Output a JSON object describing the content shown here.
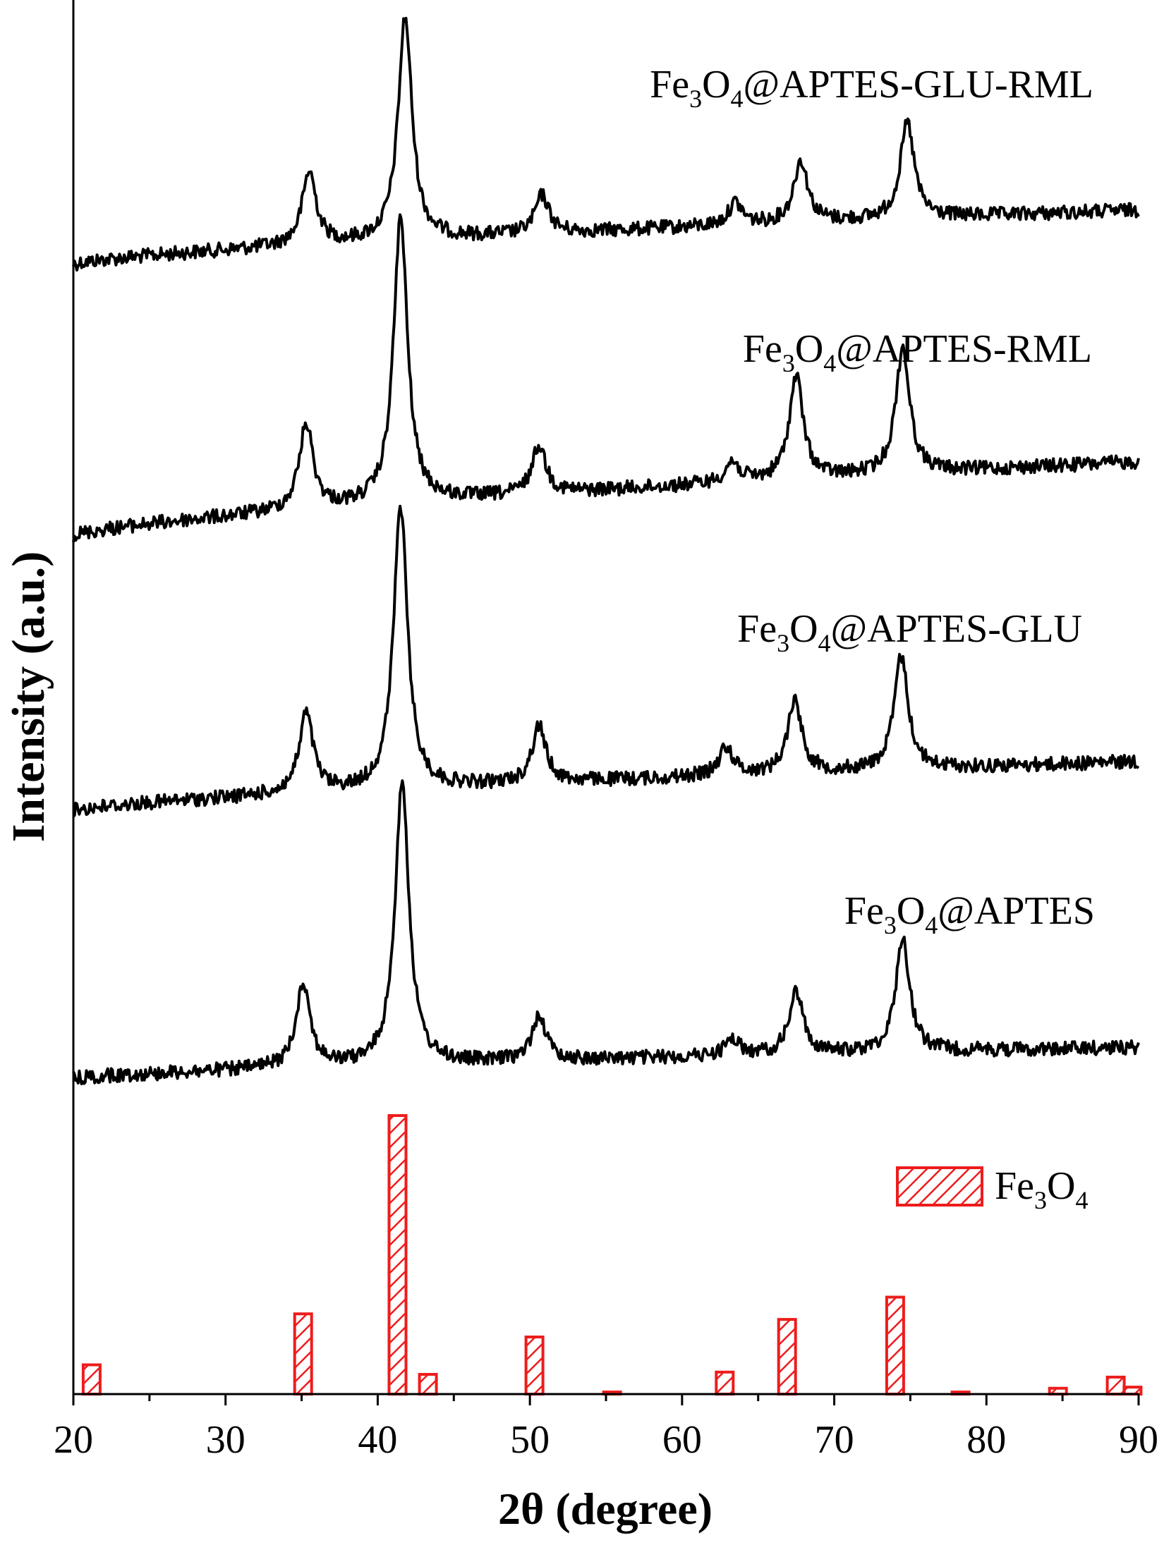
{
  "chart_data": {
    "type": "line",
    "xlabel": "2θ (degree)",
    "ylabel": "Intensity (a.u.)",
    "xlim": [
      20,
      90
    ],
    "x_ticks": [
      "20",
      "30",
      "40",
      "50",
      "60",
      "70",
      "80",
      "90"
    ],
    "series": [
      {
        "name": "Fe3O4@APTES-GLU-RML",
        "label_main": "Fe",
        "label_sub1": "3",
        "label_mid": "O",
        "label_sub2": "4",
        "label_rest": "@APTES-GLU-RML",
        "peaks": [
          {
            "x": 35.5,
            "h": 0.33
          },
          {
            "x": 41.8,
            "h": 1.0
          },
          {
            "x": 50.8,
            "h": 0.17
          },
          {
            "x": 63.5,
            "h": 0.1
          },
          {
            "x": 67.8,
            "h": 0.28
          },
          {
            "x": 74.8,
            "h": 0.43
          }
        ]
      },
      {
        "name": "Fe3O4@APTES-RML",
        "label_main": "Fe",
        "label_sub1": "3",
        "label_mid": "O",
        "label_sub2": "4",
        "label_rest": "@APTES-RML",
        "peaks": [
          {
            "x": 35.3,
            "h": 0.3
          },
          {
            "x": 41.5,
            "h": 1.0
          },
          {
            "x": 50.6,
            "h": 0.17
          },
          {
            "x": 63.3,
            "h": 0.07
          },
          {
            "x": 67.5,
            "h": 0.36
          },
          {
            "x": 74.5,
            "h": 0.44
          }
        ]
      },
      {
        "name": "Fe3O4@APTES-GLU",
        "label_main": "Fe",
        "label_sub1": "3",
        "label_mid": "O",
        "label_sub2": "4",
        "label_rest": "@APTES-GLU",
        "peaks": [
          {
            "x": 35.3,
            "h": 0.28
          },
          {
            "x": 41.5,
            "h": 1.0
          },
          {
            "x": 50.6,
            "h": 0.2
          },
          {
            "x": 62.9,
            "h": 0.1
          },
          {
            "x": 67.4,
            "h": 0.26
          },
          {
            "x": 74.4,
            "h": 0.4
          }
        ]
      },
      {
        "name": "Fe3O4@APTES",
        "label_main": "Fe",
        "label_sub1": "3",
        "label_mid": "O",
        "label_sub2": "4",
        "label_rest": "@APTES",
        "peaks": [
          {
            "x": 35.1,
            "h": 0.3
          },
          {
            "x": 41.6,
            "h": 1.0
          },
          {
            "x": 50.6,
            "h": 0.16
          },
          {
            "x": 63.3,
            "h": 0.06
          },
          {
            "x": 67.5,
            "h": 0.22
          },
          {
            "x": 74.5,
            "h": 0.4
          }
        ]
      }
    ],
    "reference": {
      "name": "Fe3O4",
      "label_main": "Fe",
      "label_sub1": "3",
      "label_mid": "O",
      "label_sub2": "4",
      "bars": [
        {
          "x": 21.2,
          "h": 0.105
        },
        {
          "x": 35.1,
          "h": 0.288
        },
        {
          "x": 41.3,
          "h": 1.0
        },
        {
          "x": 43.3,
          "h": 0.071
        },
        {
          "x": 50.3,
          "h": 0.205
        },
        {
          "x": 55.4,
          "h": 0.004
        },
        {
          "x": 62.8,
          "h": 0.079
        },
        {
          "x": 66.9,
          "h": 0.268
        },
        {
          "x": 74.0,
          "h": 0.348
        },
        {
          "x": 78.3,
          "h": 0.004
        },
        {
          "x": 84.7,
          "h": 0.021
        },
        {
          "x": 88.5,
          "h": 0.061
        },
        {
          "x": 89.6,
          "h": 0.025
        }
      ]
    },
    "colors": {
      "traces": "#000000",
      "reference": "#ee1c1c",
      "axis": "#000000"
    },
    "grid": false,
    "legend": "right"
  }
}
